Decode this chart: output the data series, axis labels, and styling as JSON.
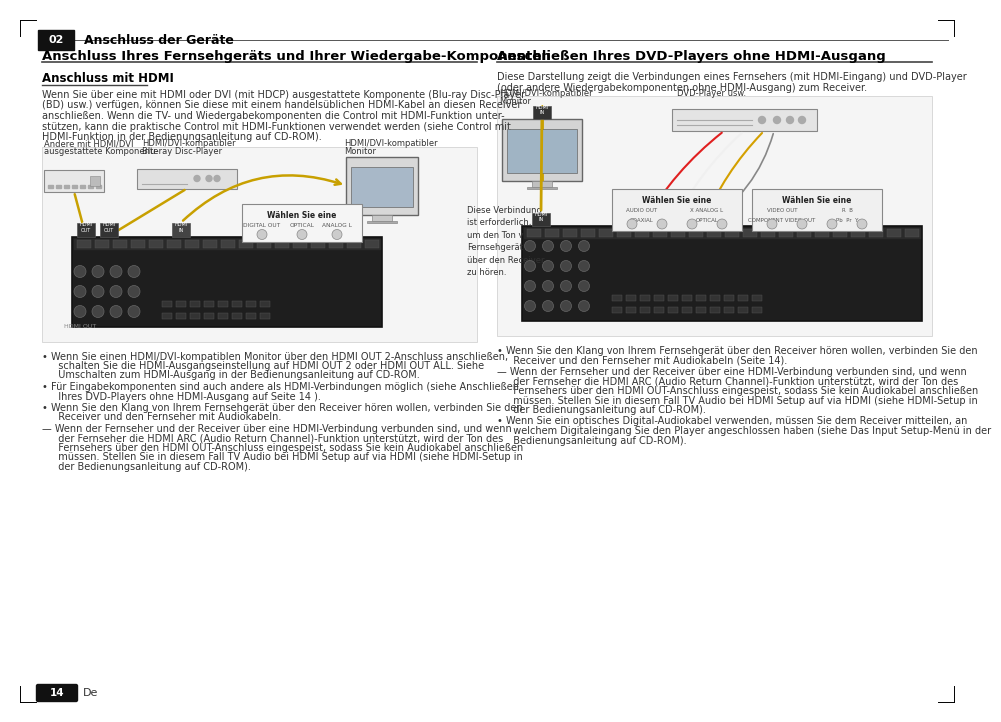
{
  "page_bg": "#ffffff",
  "header_bar_color": "#1a1a1a",
  "header_number": "02",
  "header_label": "Anschluss der Geräte",
  "footer_number": "14",
  "footer_lang": "De",
  "left_title": "Anschluss Ihres Fernsehgeräts und Ihrer Wiedergabe-Komponenten",
  "left_sub": "Anschluss mit HDMI",
  "left_body": [
    "Wenn Sie über eine mit HDMI oder DVI (mit HDCP) ausgestattete Komponente (Blu-ray Disc-Player",
    "(BD) usw.) verfügen, können Sie diese mit einem handelsüblichen HDMI-Kabel an diesen Receiver",
    "anschließen. Wenn die TV- und Wiedergabekomponenten die Control mit HDMI-Funktion unter-",
    "stützen, kann die praktische Control mit HDMI-Funktionen verwendet werden (siehe Control mit",
    "HDMI-Funktion in der Bedienungsanleitung auf CD-ROM)."
  ],
  "left_bullets": [
    "• Wenn Sie einen HDMI/DVI-kompatiblen Monitor über den HDMI OUT 2-Anschluss anschließen,\n  schalten Sie die HDMI-Ausgangseinstellung auf HDMI OUT 2 oder HDMI OUT ALL. Siehe\n  Umschalten zum HDMI-Ausgang in der Bedienungsanleitung auf CD-ROM.",
    "• Für Eingabekomponenten sind auch andere als HDMI-Verbindungen möglich (siehe Anschließen\n  Ihres DVD-Players ohne HDMI-Ausgang auf Seite 14 ).",
    "• Wenn Sie den Klang von Ihrem Fernsehgerät über den Receiver hören wollen, verbinden Sie den\n  Receiver und den Fernseher mit Audiokabeln.",
    "— Wenn der Fernseher und der Receiver über eine HDMI-Verbindung verbunden sind, und wenn\n  der Fernseher die HDMI ARC (Audio Return Channel)-Funktion unterstützt, wird der Ton des\n  Fernsehers über den HDMI OUT-Anschluss eingespeist, sodass Sie kein Audiokabel anschließen\n  müssen. Stellen Sie in diesem Fall TV Audio bei HDMI Setup auf via HDMI (siehe HDMI-Setup in\n  der Bedienungsanleitung auf CD-ROM)."
  ],
  "right_title": "Anschließen Ihres DVD-Players ohne HDMI-Ausgang",
  "right_intro1": "Diese Darstellung zeigt die Verbindungen eines Fernsehers (mit HDMI-Eingang) und DVD-Player",
  "right_intro2": "(oder andere Wiedergabekomponenten ohne HDMI-Ausgang) zum Receiver.",
  "right_bullets": [
    "• Wenn Sie den Klang von Ihrem Fernsehgerät über den Receiver hören wollen, verbinden Sie den\n  Receiver und den Fernseher mit Audiokabeln (Seite 14).",
    "— Wenn der Fernseher und der Receiver über eine HDMI-Verbindung verbunden sind, und wenn\n  der Fernseher die HDMI ARC (Audio Return Channel)-Funktion unterstützt, wird der Ton des\n  Fernsehers über den HDMI OUT-Anschluss eingespeist, sodass Sie kein Audiokabel anschließen\n  müssen. Stellen Sie in diesem Fall TV Audio bei HDMI Setup auf via HDMI (siehe HDMI-Setup in\n  der Bedienungsanleitung auf CD-ROM).",
    "• Wenn Sie ein optisches Digital-Audiokabel verwenden, müssen Sie dem Receiver mitteilen, an\n  welchem Digitaleingang Sie den Player angeschlossen haben (siehe Das Input Setup-Menü in der\n  Bedienungsanleitung auf CD-ROM)."
  ],
  "text_color": "#333333",
  "title_color": "#000000"
}
